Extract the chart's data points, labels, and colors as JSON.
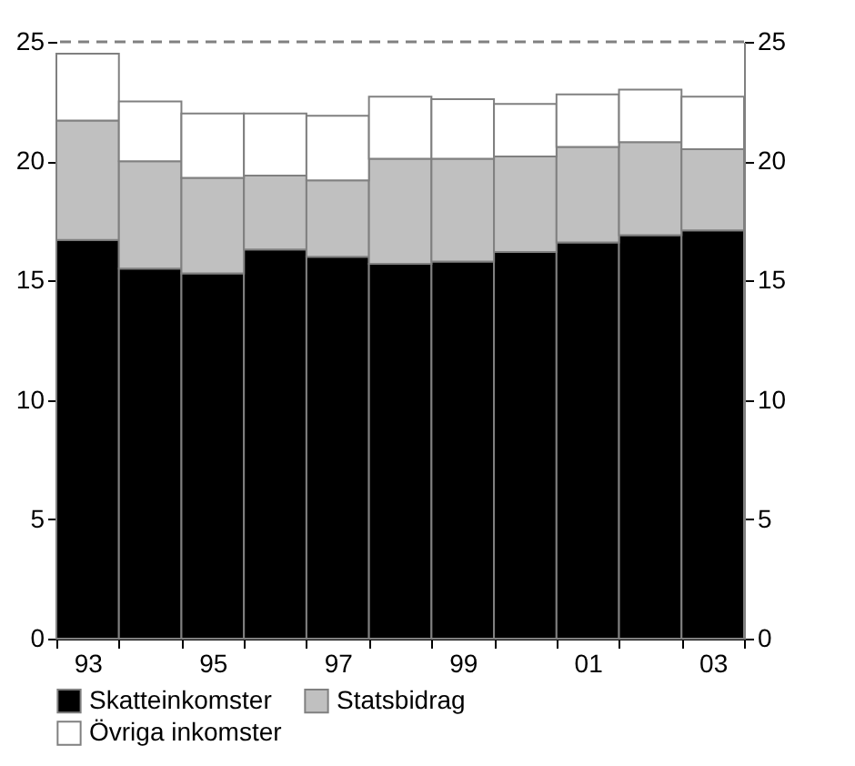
{
  "chart_data": {
    "type": "bar",
    "stacked": true,
    "categories": [
      "93",
      null,
      "95",
      null,
      "97",
      null,
      "99",
      null,
      "01",
      null,
      "03"
    ],
    "series": [
      {
        "name": "Skatteinkomster",
        "color": "#000000",
        "values": [
          16.7,
          15.5,
          15.3,
          16.3,
          16.0,
          15.7,
          15.8,
          16.2,
          16.6,
          16.9,
          17.1
        ]
      },
      {
        "name": "Statsbidrag",
        "color": "#c0c0c0",
        "values": [
          5.0,
          4.5,
          4.0,
          3.1,
          3.2,
          4.4,
          4.3,
          4.0,
          4.0,
          3.9,
          3.4
        ]
      },
      {
        "name": "Övriga inkomster",
        "color": "#ffffff",
        "values": [
          2.8,
          2.5,
          2.7,
          2.6,
          2.7,
          2.6,
          2.5,
          2.2,
          2.2,
          2.2,
          2.2
        ]
      }
    ],
    "ylim": [
      0,
      25
    ],
    "yticks": [
      0,
      5,
      10,
      15,
      20,
      25
    ],
    "y2lim": [
      0,
      25
    ],
    "y2ticks": [
      0,
      5,
      10,
      15,
      20,
      25
    ],
    "ref_lines": [
      {
        "axis": "y",
        "value": 25,
        "color": "#808080",
        "line_style": "dashed"
      }
    ],
    "grid": false,
    "legend": "bottom"
  }
}
